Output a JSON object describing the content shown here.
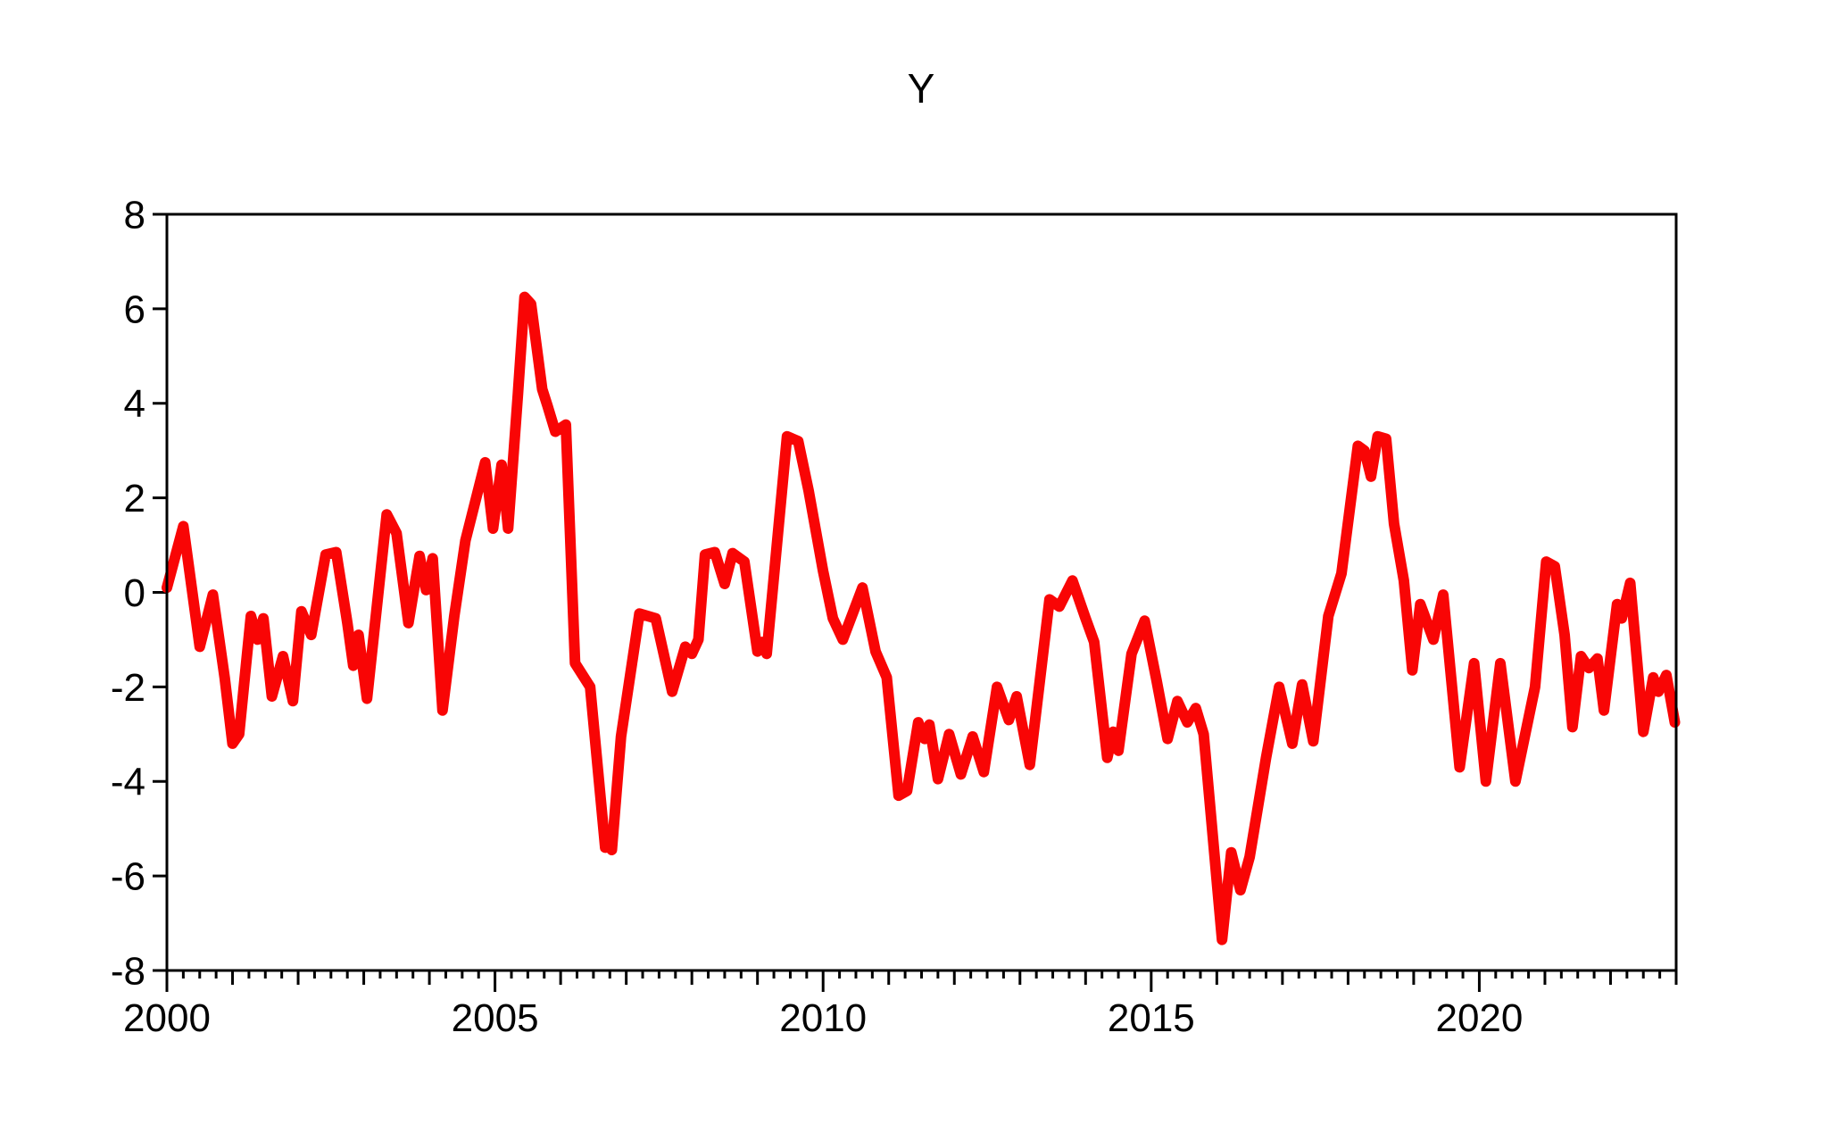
{
  "chart_data": {
    "type": "line",
    "title": "Y",
    "grid": "off",
    "legend": "none",
    "plot_bg": "#ffffff",
    "border_color": "#000000",
    "xlabel": "",
    "ylabel": "",
    "x_axis": {
      "min": 2000,
      "max": 2023,
      "labeled_ticks": [
        2000,
        2005,
        2010,
        2015,
        2020
      ],
      "labeled_tick_texts": [
        "2000",
        "2005",
        "2010",
        "2015",
        "2020"
      ],
      "year_tick_interval": 1,
      "minor_tick_interval": 0.25
    },
    "y_axis": {
      "min": -8,
      "max": 8,
      "tick_interval": 2,
      "tick_labels": [
        "8",
        "6",
        "4",
        "2",
        "0",
        "-2",
        "-4",
        "-6",
        "-8"
      ],
      "tick_values": [
        8,
        6,
        4,
        2,
        0,
        -2,
        -4,
        -6,
        -8
      ]
    },
    "series": [
      {
        "name": "Y",
        "color": "#f90505",
        "stroke_width": 12,
        "points": [
          [
            2000.0,
            0.1
          ],
          [
            2000.25,
            1.4
          ],
          [
            2000.5,
            -1.15
          ],
          [
            2000.7,
            -0.05
          ],
          [
            2000.88,
            -1.8
          ],
          [
            2001.0,
            -3.2
          ],
          [
            2001.1,
            -3.0
          ],
          [
            2001.28,
            -0.5
          ],
          [
            2001.38,
            -1.0
          ],
          [
            2001.47,
            -0.55
          ],
          [
            2001.6,
            -2.2
          ],
          [
            2001.77,
            -1.35
          ],
          [
            2001.92,
            -2.3
          ],
          [
            2002.05,
            -0.4
          ],
          [
            2002.2,
            -0.9
          ],
          [
            2002.42,
            0.8
          ],
          [
            2002.58,
            0.85
          ],
          [
            2002.75,
            -0.65
          ],
          [
            2002.84,
            -1.55
          ],
          [
            2002.92,
            -0.9
          ],
          [
            2003.05,
            -2.25
          ],
          [
            2003.35,
            1.65
          ],
          [
            2003.5,
            1.25
          ],
          [
            2003.68,
            -0.65
          ],
          [
            2003.85,
            0.77
          ],
          [
            2003.95,
            0.05
          ],
          [
            2004.05,
            0.72
          ],
          [
            2004.2,
            -2.5
          ],
          [
            2004.38,
            -0.5
          ],
          [
            2004.55,
            1.1
          ],
          [
            2004.85,
            2.75
          ],
          [
            2004.97,
            1.35
          ],
          [
            2005.1,
            2.7
          ],
          [
            2005.2,
            1.35
          ],
          [
            2005.35,
            4.2
          ],
          [
            2005.45,
            6.25
          ],
          [
            2005.55,
            6.1
          ],
          [
            2005.72,
            4.3
          ],
          [
            2005.8,
            3.95
          ],
          [
            2005.92,
            3.4
          ],
          [
            2006.08,
            3.55
          ],
          [
            2006.22,
            -1.5
          ],
          [
            2006.45,
            -2.0
          ],
          [
            2006.68,
            -5.4
          ],
          [
            2006.73,
            -5.15
          ],
          [
            2006.78,
            -5.45
          ],
          [
            2006.92,
            -3.05
          ],
          [
            2007.2,
            -0.45
          ],
          [
            2007.45,
            -0.55
          ],
          [
            2007.7,
            -2.1
          ],
          [
            2007.9,
            -1.15
          ],
          [
            2008.0,
            -1.3
          ],
          [
            2008.1,
            -1.0
          ],
          [
            2008.2,
            0.8
          ],
          [
            2008.35,
            0.85
          ],
          [
            2008.5,
            0.18
          ],
          [
            2008.62,
            0.83
          ],
          [
            2008.8,
            0.65
          ],
          [
            2009.0,
            -1.25
          ],
          [
            2009.07,
            -1.05
          ],
          [
            2009.14,
            -1.3
          ],
          [
            2009.45,
            3.3
          ],
          [
            2009.62,
            3.2
          ],
          [
            2009.78,
            2.15
          ],
          [
            2010.0,
            0.45
          ],
          [
            2010.15,
            -0.55
          ],
          [
            2010.3,
            -1.0
          ],
          [
            2010.6,
            0.1
          ],
          [
            2010.8,
            -1.25
          ],
          [
            2010.97,
            -1.8
          ],
          [
            2011.15,
            -4.3
          ],
          [
            2011.28,
            -4.2
          ],
          [
            2011.45,
            -2.75
          ],
          [
            2011.55,
            -3.1
          ],
          [
            2011.62,
            -2.8
          ],
          [
            2011.75,
            -3.95
          ],
          [
            2011.92,
            -3.0
          ],
          [
            2012.1,
            -3.85
          ],
          [
            2012.28,
            -3.05
          ],
          [
            2012.45,
            -3.8
          ],
          [
            2012.65,
            -2.0
          ],
          [
            2012.83,
            -2.7
          ],
          [
            2012.95,
            -2.2
          ],
          [
            2013.15,
            -3.65
          ],
          [
            2013.45,
            -0.15
          ],
          [
            2013.6,
            -0.3
          ],
          [
            2013.8,
            0.25
          ],
          [
            2014.0,
            -0.55
          ],
          [
            2014.13,
            -1.05
          ],
          [
            2014.33,
            -3.5
          ],
          [
            2014.42,
            -2.95
          ],
          [
            2014.5,
            -3.35
          ],
          [
            2014.7,
            -1.3
          ],
          [
            2014.9,
            -0.6
          ],
          [
            2015.08,
            -1.85
          ],
          [
            2015.25,
            -3.1
          ],
          [
            2015.4,
            -2.3
          ],
          [
            2015.55,
            -2.75
          ],
          [
            2015.68,
            -2.45
          ],
          [
            2015.8,
            -3.0
          ],
          [
            2016.08,
            -7.35
          ],
          [
            2016.22,
            -5.5
          ],
          [
            2016.36,
            -6.3
          ],
          [
            2016.5,
            -5.6
          ],
          [
            2016.75,
            -3.5
          ],
          [
            2016.95,
            -2.0
          ],
          [
            2017.15,
            -3.2
          ],
          [
            2017.3,
            -1.95
          ],
          [
            2017.47,
            -3.15
          ],
          [
            2017.7,
            -0.5
          ],
          [
            2017.9,
            0.4
          ],
          [
            2018.15,
            3.1
          ],
          [
            2018.25,
            3.0
          ],
          [
            2018.35,
            2.45
          ],
          [
            2018.45,
            3.3
          ],
          [
            2018.58,
            3.25
          ],
          [
            2018.7,
            1.45
          ],
          [
            2018.85,
            0.25
          ],
          [
            2018.98,
            -1.65
          ],
          [
            2019.1,
            -0.25
          ],
          [
            2019.3,
            -1.0
          ],
          [
            2019.45,
            -0.05
          ],
          [
            2019.7,
            -3.7
          ],
          [
            2019.92,
            -1.5
          ],
          [
            2020.1,
            -4.0
          ],
          [
            2020.32,
            -1.5
          ],
          [
            2020.55,
            -4.0
          ],
          [
            2020.85,
            -2.0
          ],
          [
            2021.02,
            0.65
          ],
          [
            2021.15,
            0.55
          ],
          [
            2021.3,
            -0.9
          ],
          [
            2021.42,
            -2.85
          ],
          [
            2021.55,
            -1.35
          ],
          [
            2021.67,
            -1.6
          ],
          [
            2021.8,
            -1.4
          ],
          [
            2021.9,
            -2.5
          ],
          [
            2022.1,
            -0.25
          ],
          [
            2022.17,
            -0.55
          ],
          [
            2022.3,
            0.2
          ],
          [
            2022.5,
            -2.95
          ],
          [
            2022.65,
            -1.8
          ],
          [
            2022.73,
            -2.1
          ],
          [
            2022.85,
            -1.75
          ],
          [
            2022.98,
            -2.75
          ]
        ]
      }
    ]
  }
}
